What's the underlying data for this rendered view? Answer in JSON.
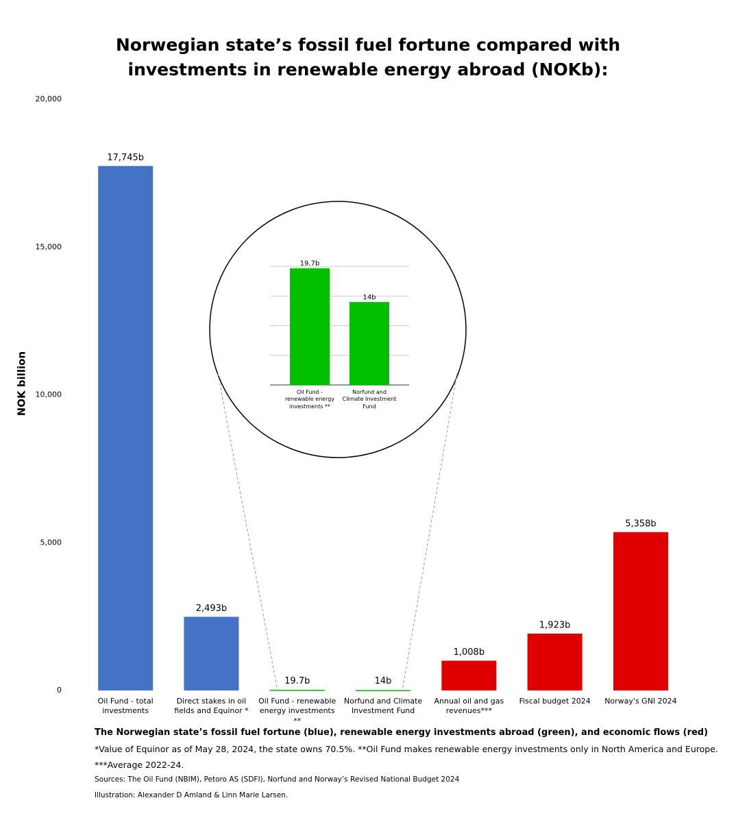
{
  "title": "Norwegian state’s fossil fuel fortune compared with investments in renewable energy abroad (NOKb):",
  "chart_data": [
    {
      "type": "bar",
      "y_label": "NOK billion",
      "categories": [
        "Oil Fund - total investments",
        "Direct stakes in oil fields and Equinor *",
        "Oil Fund - renewable energy investments **",
        "Norfund and Climate Investment Fund",
        "Annual oil and gas revenues***",
        "Fiscal budget 2024",
        "Norway's GNI 2024"
      ],
      "values": [
        17745,
        2493,
        19.7,
        14,
        1008,
        1923,
        5358
      ],
      "value_labels": [
        "17,745b",
        "2,493b",
        "19.7b",
        "14b",
        "1,008b",
        "1,923b",
        "5,358b"
      ],
      "colors": [
        "#4472c4",
        "#4472c4",
        "#00c000",
        "#00c000",
        "#e00000",
        "#e00000",
        "#e00000"
      ],
      "ylim": [
        0,
        20000
      ],
      "yticks": [
        0,
        {
          "value": 5000,
          "label": "5,000"
        },
        {
          "value": 10000,
          "label": "10,000"
        },
        {
          "value": 15000,
          "label": "15,000"
        },
        {
          "value": 20000,
          "label": "20,000"
        }
      ],
      "grid": false
    },
    {
      "type": "bar",
      "categories": [
        "Oil Fund - renewable energy investments **",
        "Norfund and Climate Investment Fund"
      ],
      "values": [
        19.7,
        14
      ],
      "value_labels": [
        "19.7b",
        "14b"
      ],
      "color": "#00c000",
      "ylim": [
        0,
        20
      ],
      "yticks": [
        0,
        5,
        10,
        15,
        20
      ],
      "grid": true
    }
  ],
  "footer": {
    "caption": "The Norwegian state’s fossil fuel fortune (blue), renewable energy investments abroad (green), and economic flows (red)",
    "notes": [
      "*Value of Equinor as of May 28, 2024, the state owns 70.5%. **Oil Fund makes renewable energy investments only in North America and Europe.",
      "***Average 2022-24."
    ],
    "sources": "Sources: The Oil Fund (NBIM), Petoro AS (SDFI), Norfund and Norway’s Revised National Budget 2024",
    "credit": "Illustration: Alexander D Amland & Linn Marie Larsen."
  }
}
